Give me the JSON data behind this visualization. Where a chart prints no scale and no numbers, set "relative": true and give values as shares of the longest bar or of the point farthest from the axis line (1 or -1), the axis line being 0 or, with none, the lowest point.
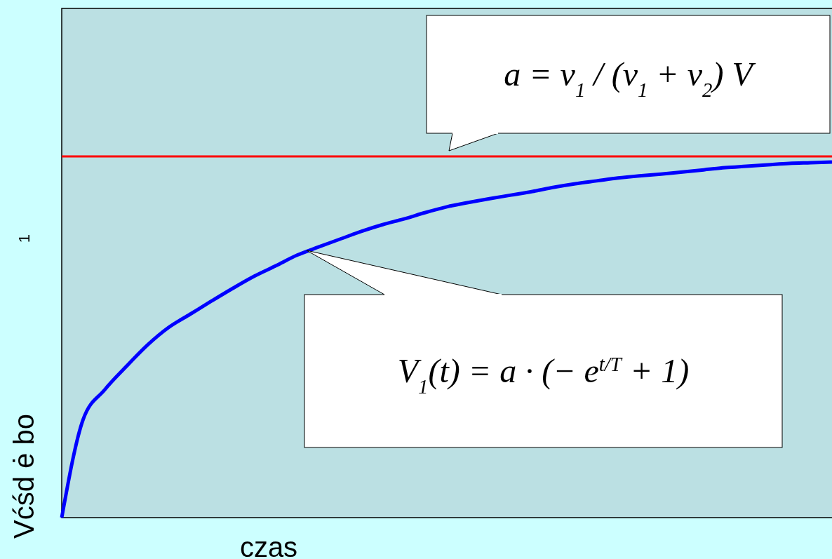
{
  "chart_data": {
    "type": "line",
    "relative": true,
    "xlabel": "czas",
    "ylabel": "Vćśd ė bo",
    "categories": [
      null,
      null,
      null,
      null,
      null,
      null,
      null,
      null,
      null,
      null,
      null,
      null,
      null,
      null,
      null,
      null,
      null,
      null,
      null,
      null,
      null,
      null,
      null,
      null,
      null,
      null,
      null,
      null,
      null,
      null,
      null,
      null,
      null,
      null,
      null,
      null,
      null
    ],
    "series": [
      {
        "color": "#0000ff",
        "values": [
          0,
          0.276,
          0.359,
          0.424,
          0.485,
          0.535,
          0.572,
          0.609,
          0.645,
          0.679,
          0.708,
          0.738,
          0.761,
          0.783,
          0.805,
          0.824,
          0.84,
          0.858,
          0.874,
          0.886,
          0.897,
          0.907,
          0.917,
          0.929,
          0.939,
          0.947,
          0.955,
          0.961,
          0.966,
          0.972,
          0.978,
          0.984,
          0.988,
          0.992,
          0.996,
          0.998,
          1
        ]
      }
    ],
    "ref_lines": [
      {
        "axis": "y",
        "value": 1.016,
        "color": "#ff0000"
      }
    ],
    "annotations": [
      "a = v$_{1}$ / (v$_{1}$ + v$_{2}$) V",
      "V$_{1}$(t) = a · (− e$^{t/T}$ + 1)",
      "1"
    ],
    "line_style": "solid"
  }
}
